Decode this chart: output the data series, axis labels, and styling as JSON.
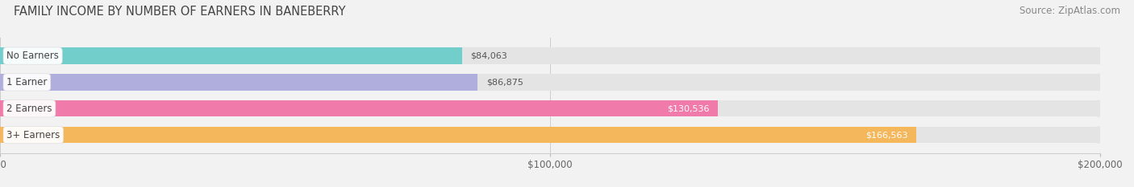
{
  "title": "FAMILY INCOME BY NUMBER OF EARNERS IN BANEBERRY",
  "source": "Source: ZipAtlas.com",
  "categories": [
    "No Earners",
    "1 Earner",
    "2 Earners",
    "3+ Earners"
  ],
  "values": [
    84063,
    86875,
    130536,
    166563
  ],
  "bar_colors": [
    "#72ceca",
    "#b0aedd",
    "#f07baa",
    "#f5b75c"
  ],
  "value_labels": [
    "$84,063",
    "$86,875",
    "$130,536",
    "$166,563"
  ],
  "value_inside": [
    false,
    false,
    true,
    true
  ],
  "xlim": [
    0,
    200000
  ],
  "xticks": [
    0,
    100000,
    200000
  ],
  "xtick_labels": [
    "$0",
    "$100,000",
    "$200,000"
  ],
  "background_color": "#f2f2f2",
  "bar_bg_color": "#e4e4e4",
  "bar_height": 0.62,
  "title_fontsize": 10.5,
  "source_fontsize": 8.5,
  "label_fontsize": 8.5,
  "value_fontsize": 8.0,
  "tick_fontsize": 8.5
}
